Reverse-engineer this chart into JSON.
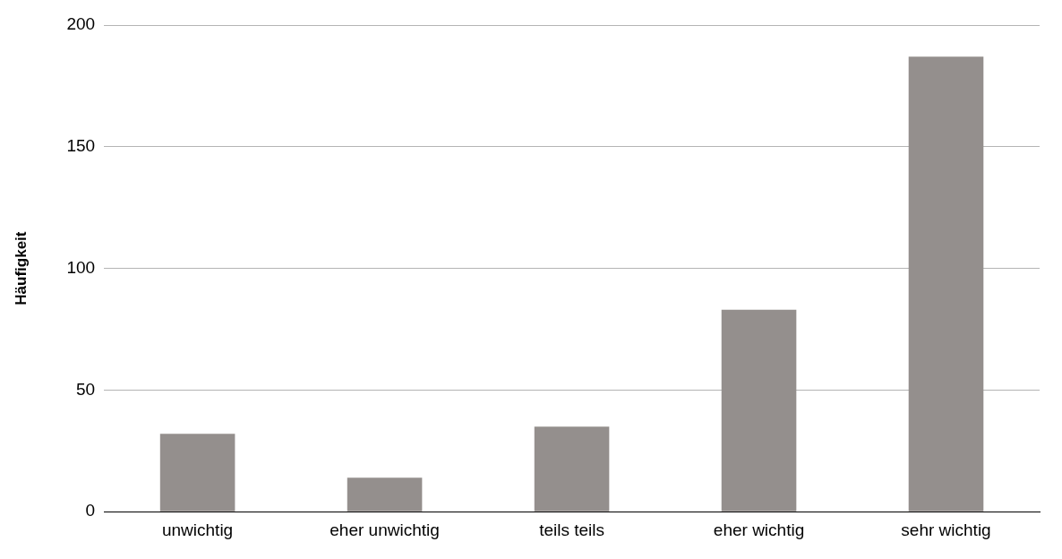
{
  "chart_data": {
    "type": "bar",
    "ylabel": "Häufigkeit",
    "categories": [
      "unwichtig",
      "eher unwichtig",
      "teils teils",
      "eher wichtig",
      "sehr wichtig"
    ],
    "values": [
      32,
      14,
      35,
      83,
      187
    ],
    "color": "#948f8d",
    "ylim": [
      0,
      200
    ],
    "yticks": [
      0,
      50,
      100,
      150,
      200
    ],
    "grid": "y",
    "legend": false
  }
}
